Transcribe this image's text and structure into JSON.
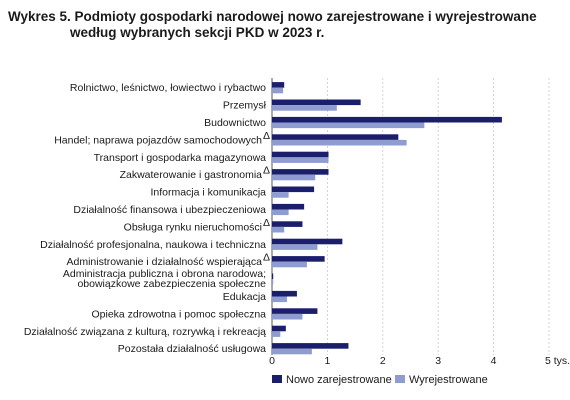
{
  "title_line1": "Wykres 5. Podmioty gospodarki narodowej nowo zarejestrowane i wyrejestrowane",
  "title_line2": "według wybranych sekcji PKD w 2023 r.",
  "chart_data": {
    "type": "bar",
    "orientation": "horizontal",
    "title": "Wykres 5. Podmioty gospodarki narodowej nowo zarejestrowane i wyrejestrowane według wybranych sekcji PKD w 2023 r.",
    "categories": [
      [
        "Rolnictwo, leśnictwo, łowiectwo i rybactwo"
      ],
      [
        "Przemysł"
      ],
      [
        "Budownictwo"
      ],
      [
        "Handel; naprawa pojazdów samochodowych",
        "Δ"
      ],
      [
        "Transport i gospodarka magazynowa"
      ],
      [
        "Zakwaterowanie i gastronomia",
        "Δ"
      ],
      [
        "Informacja i komunikacja"
      ],
      [
        "Działalność finansowa i ubezpieczeniowa"
      ],
      [
        "Obsługa rynku nieruchomości",
        "Δ"
      ],
      [
        "Działalność profesjonalna, naukowa i techniczna"
      ],
      [
        "Administrowanie i działalność wspierająca",
        "Δ"
      ],
      [
        "Administracja publiczna i obrona narodowa;",
        "obowiązkowe zabezpieczenia społeczne"
      ],
      [
        "Edukacja"
      ],
      [
        "Opieka zdrowotna i pomoc społeczna"
      ],
      [
        "Działalność związana z kulturą, rozrywką i rekreacją"
      ],
      [
        "Pozostała działalność usługowa"
      ]
    ],
    "series": [
      {
        "name": "Nowo zarejestrowane",
        "color": "#1b1f6b",
        "values": [
          0.22,
          1.6,
          4.15,
          2.28,
          1.02,
          1.02,
          0.76,
          0.58,
          0.55,
          1.27,
          0.95,
          0.01,
          0.45,
          0.82,
          0.25,
          1.38
        ]
      },
      {
        "name": "Wyrejestrowane",
        "color": "#8e9cd0",
        "values": [
          0.2,
          1.17,
          2.75,
          2.43,
          1.02,
          0.78,
          0.3,
          0.3,
          0.22,
          0.82,
          0.63,
          0.01,
          0.27,
          0.55,
          0.15,
          0.72
        ]
      }
    ],
    "xlim": [
      0,
      5
    ],
    "xticks": [
      "0",
      "1",
      "2",
      "3",
      "4",
      "5 tys."
    ],
    "grid": "vertical",
    "legend_position": "bottom"
  }
}
